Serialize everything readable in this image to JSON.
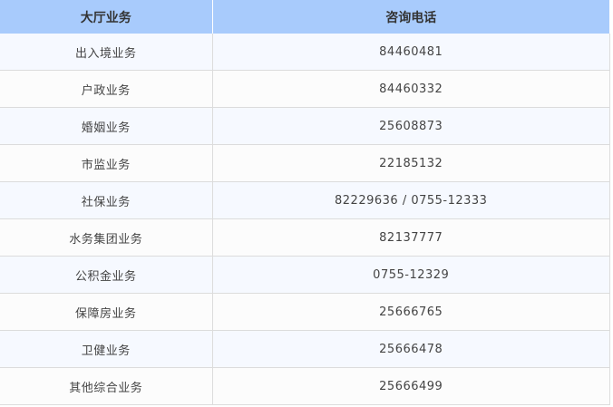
{
  "header": {
    "col1": "大厅业务",
    "col2": "咨询电话"
  },
  "rows": [
    {
      "service": "出入境业务",
      "phone": "84460481"
    },
    {
      "service": "户政业务",
      "phone": "84460332"
    },
    {
      "service": "婚姻业务",
      "phone": "25608873"
    },
    {
      "service": "市监业务",
      "phone": "22185132"
    },
    {
      "service": "社保业务",
      "phone": "82229636 / 0755-12333"
    },
    {
      "service": "水务集团业务",
      "phone": "82137777"
    },
    {
      "service": "公积金业务",
      "phone": "0755-12329"
    },
    {
      "service": "保障房业务",
      "phone": "25666765"
    },
    {
      "service": "卫健业务",
      "phone": "25666478"
    },
    {
      "service": "其他综合业务",
      "phone": "25666499"
    }
  ]
}
